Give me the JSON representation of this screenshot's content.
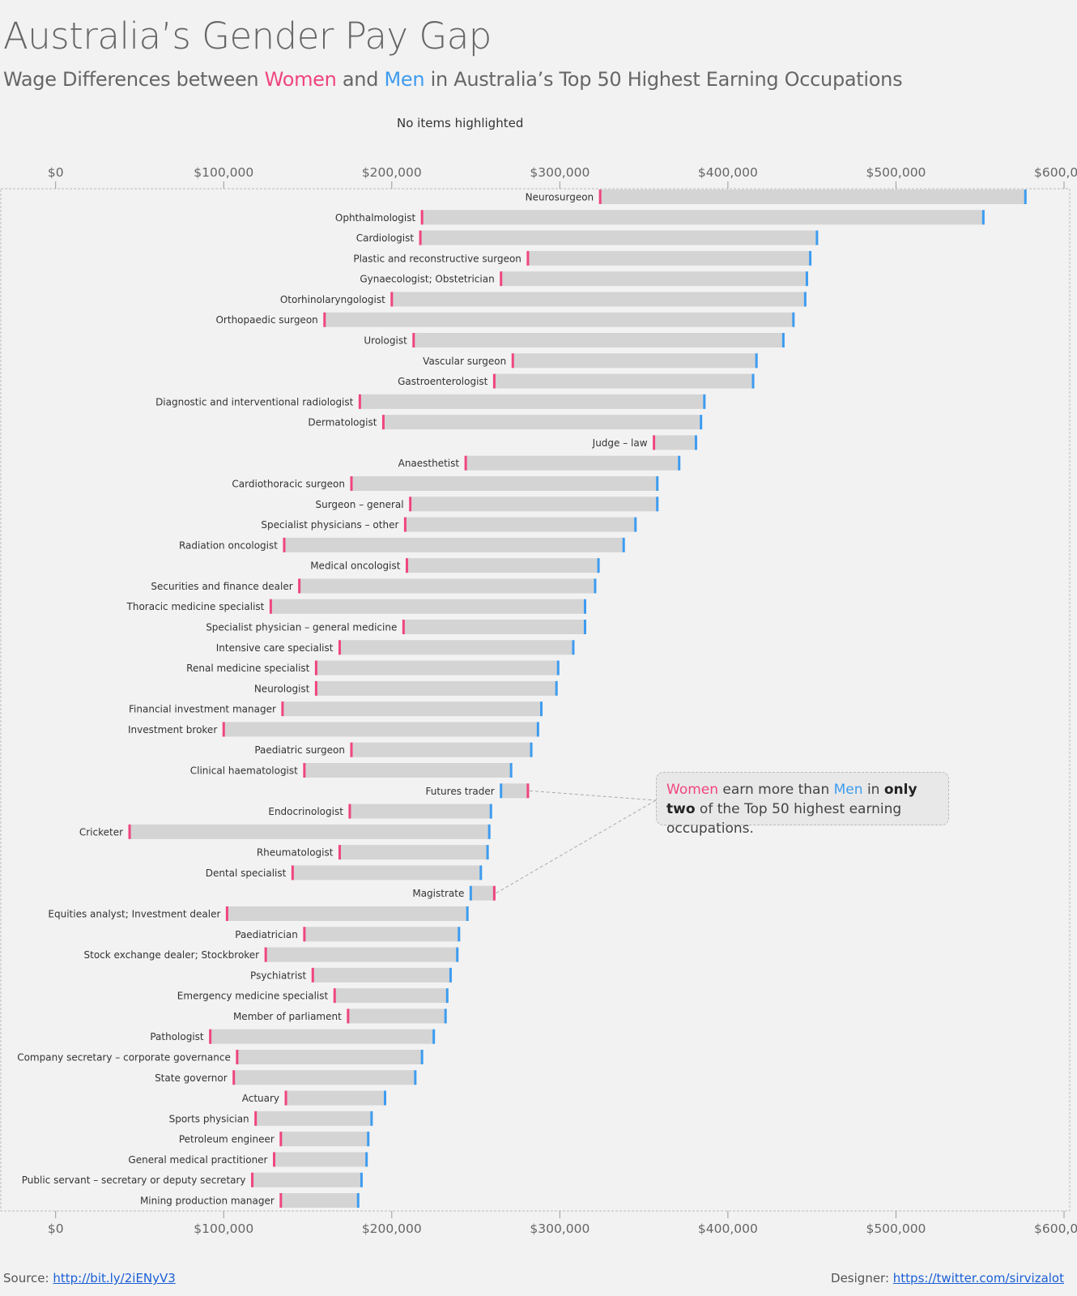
{
  "title": "Australia’s Gender Pay Gap",
  "subtitle": {
    "prefix": "Wage Differences between ",
    "women": "Women",
    "and": " and ",
    "men": "Men",
    "suffix": " in Australia’s Top 50 Highest Earning Occupations"
  },
  "highlight_status": "No items highlighted",
  "callout": {
    "women": "Women",
    "t1": " earn more than ",
    "men": "Men",
    "t2": " in ",
    "bold": "only two",
    "t3": " of the Top 50 highest earning occupations."
  },
  "footer": {
    "source_label": "Source: ",
    "source_link": "http://bit.ly/2iENyV3",
    "designer_label": "Designer: ",
    "designer_link": "https://twitter.com/sirvizalot"
  },
  "colors": {
    "women": "#f0457d",
    "men": "#3d9cf0",
    "bar": "#d4d4d4"
  },
  "chart_data": {
    "type": "dumbbell-bar",
    "xlim": [
      0,
      600000
    ],
    "x_ticks": [
      "$0",
      "$100,000",
      "$200,000",
      "$300,000",
      "$400,000",
      "$500,000",
      "$600,000"
    ],
    "x_tick_values": [
      0,
      100000,
      200000,
      300000,
      400000,
      500000,
      600000
    ],
    "axis_position": "top-and-bottom",
    "grid": false,
    "categories": [
      "Neurosurgeon",
      "Ophthalmologist",
      "Cardiologist",
      "Plastic and reconstructive surgeon",
      "Gynaecologist; Obstetrician",
      "Otorhinolaryngologist",
      "Orthopaedic surgeon",
      "Urologist",
      "Vascular surgeon",
      "Gastroenterologist",
      "Diagnostic and interventional radiologist",
      "Dermatologist",
      "Judge – law",
      "Anaesthetist",
      "Cardiothoracic surgeon",
      "Surgeon – general",
      "Specialist physicians – other",
      "Radiation oncologist",
      "Medical oncologist",
      "Securities and finance dealer",
      "Thoracic medicine specialist",
      "Specialist physician – general medicine",
      "Intensive care specialist",
      "Renal medicine specialist",
      "Neurologist",
      "Financial investment manager",
      "Investment broker",
      "Paediatric surgeon",
      "Clinical haematologist",
      "Futures trader",
      "Endocrinologist",
      "Cricketer",
      "Rheumatologist",
      "Dental specialist",
      "Magistrate",
      "Equities analyst; Investment dealer",
      "Paediatrician",
      "Stock exchange dealer; Stockbroker",
      "Psychiatrist",
      "Emergency medicine specialist",
      "Member of parliament",
      "Pathologist",
      "Company secretary – corporate governance",
      "State governor",
      "Actuary",
      "Sports physician",
      "Petroleum engineer",
      "General medical practitioner",
      "Public servant – secretary or deputy secretary",
      "Mining production manager"
    ],
    "series": [
      {
        "name": "Women",
        "values": [
          324000,
          218000,
          217000,
          281000,
          265000,
          200000,
          160000,
          213000,
          272000,
          261000,
          181000,
          195000,
          356000,
          244000,
          176000,
          211000,
          208000,
          136000,
          209000,
          145000,
          128000,
          207000,
          169000,
          155000,
          155000,
          135000,
          100000,
          176000,
          148000,
          281000,
          175000,
          44000,
          169000,
          141000,
          261000,
          102000,
          148000,
          125000,
          153000,
          166000,
          174000,
          92000,
          108000,
          106000,
          137000,
          119000,
          134000,
          130000,
          117000,
          134000
        ]
      },
      {
        "name": "Men",
        "values": [
          577000,
          552000,
          453000,
          449000,
          447000,
          446000,
          439000,
          433000,
          417000,
          415000,
          386000,
          384000,
          381000,
          371000,
          358000,
          358000,
          345000,
          338000,
          323000,
          321000,
          315000,
          315000,
          308000,
          299000,
          298000,
          289000,
          287000,
          283000,
          271000,
          265000,
          259000,
          258000,
          257000,
          253000,
          247000,
          245000,
          240000,
          239000,
          235000,
          233000,
          232000,
          225000,
          218000,
          214000,
          196000,
          188000,
          186000,
          185000,
          182000,
          180000
        ]
      }
    ]
  }
}
